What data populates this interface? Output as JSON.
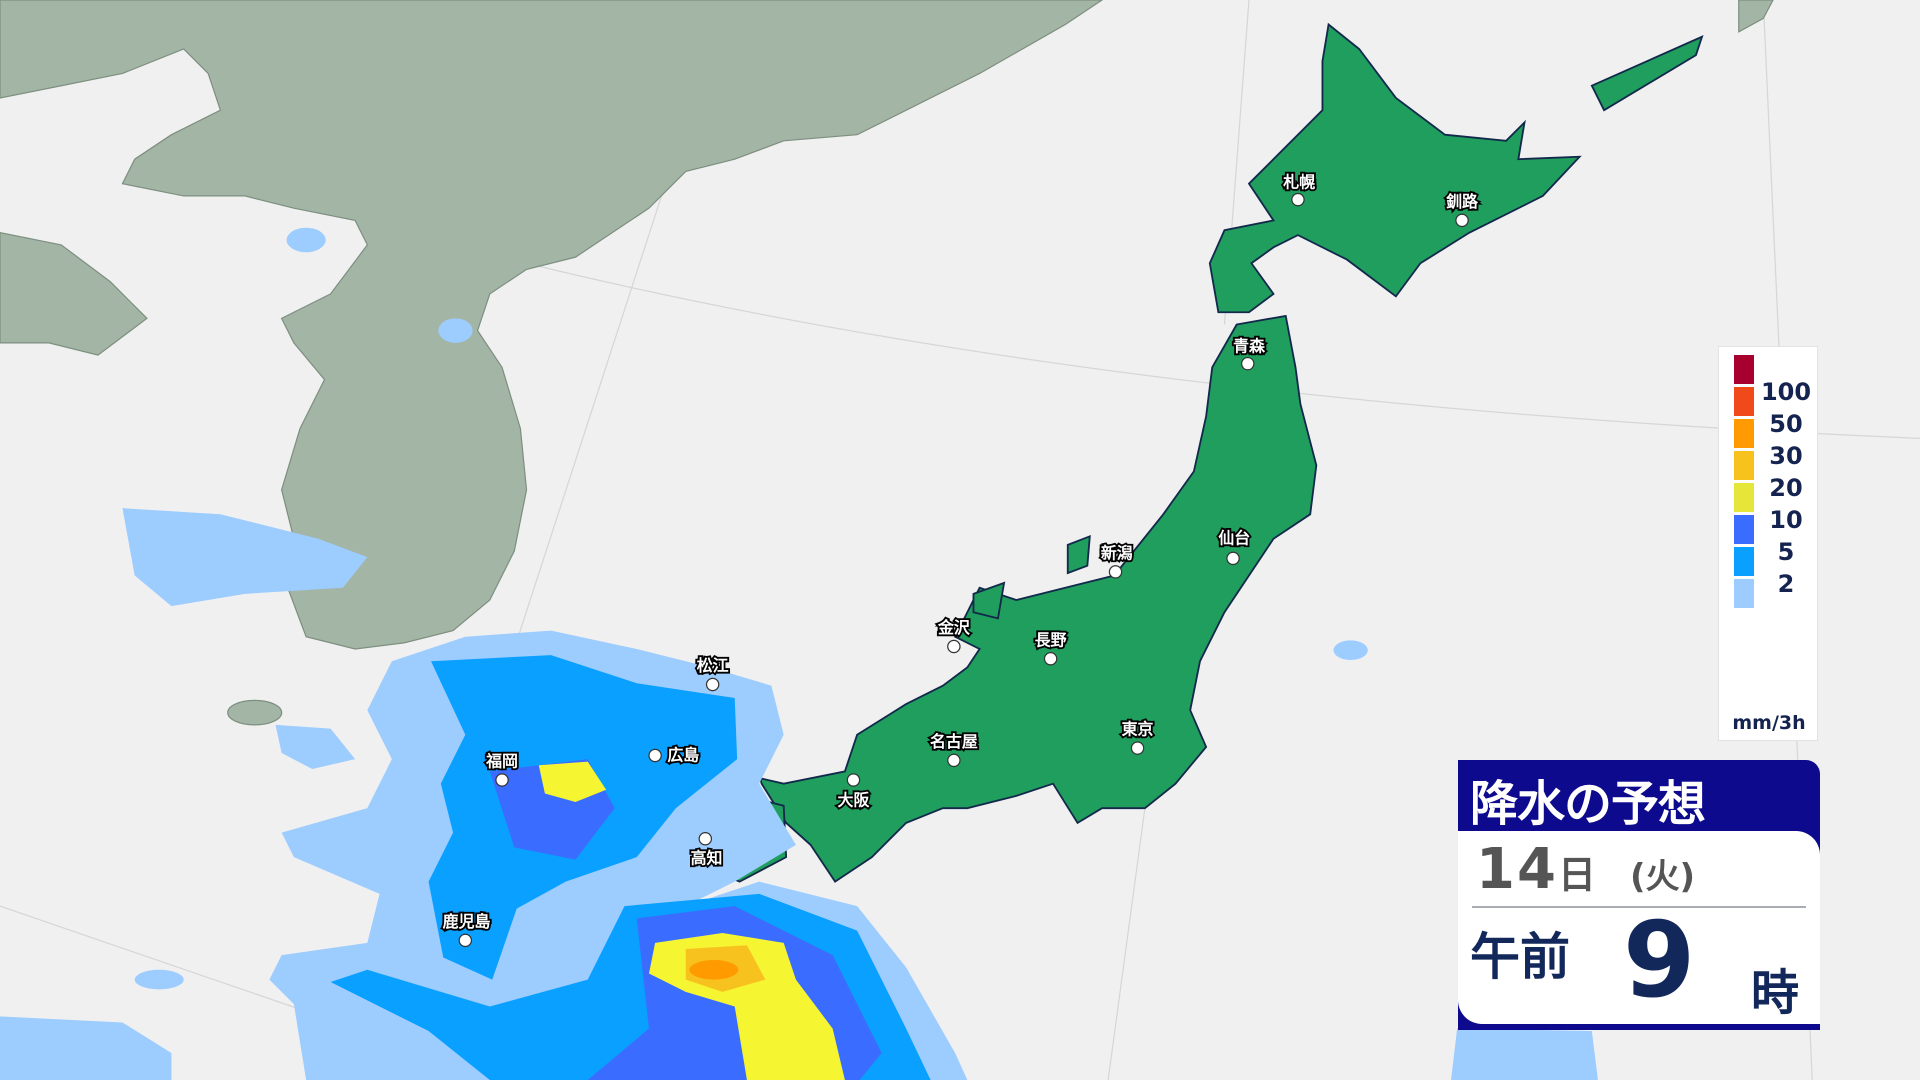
{
  "title": "降水の予想",
  "forecast": {
    "day": "14",
    "day_unit": "日",
    "weekday": "(火)",
    "ampm": "午前",
    "hour": "9",
    "hour_unit": "時"
  },
  "legend": {
    "unit": "mm/3h",
    "labels": [
      "100",
      "50",
      "30",
      "20",
      "10",
      "5",
      "2"
    ],
    "colors": [
      "#a8002e",
      "#f04a1a",
      "#ff9b00",
      "#f8c21e",
      "#e6e63a",
      "#3a6cff",
      "#0aa0ff",
      "#9dccff"
    ]
  },
  "colors": {
    "sea": "#f0f0f0",
    "continent": "#a3b5a5",
    "japan_land": "#1f9e5e",
    "title_bar": "#0d0a8e"
  },
  "cities": [
    "札幌",
    "釧路",
    "青森",
    "仙台",
    "新潟",
    "金沢",
    "長野",
    "東京",
    "名古屋",
    "大阪",
    "松江",
    "広島",
    "福岡",
    "高知",
    "鹿児島"
  ]
}
